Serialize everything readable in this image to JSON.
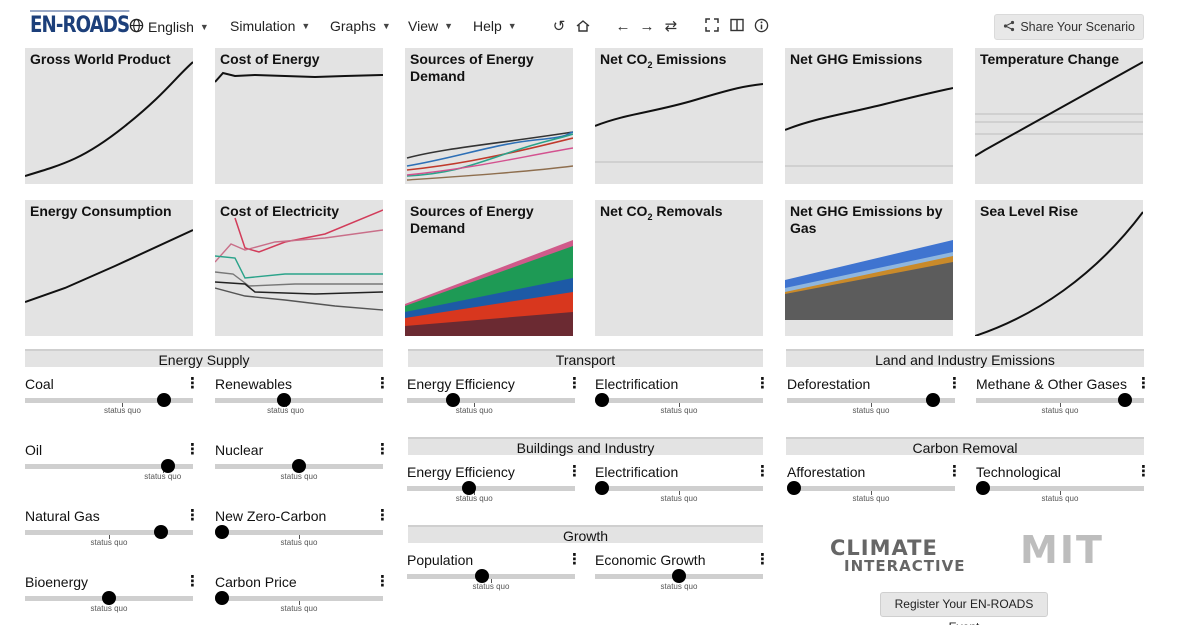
{
  "app": {
    "logo": "EN-ROADS",
    "menus": {
      "language": "English",
      "simulation": "Simulation",
      "graphs": "Graphs",
      "view": "View",
      "help": "Help"
    },
    "share_label": "Share Your Scenario",
    "register_label": "Register Your EN-ROADS Event"
  },
  "graphs": {
    "gwp": "Gross World Product",
    "cost_energy": "Cost of Energy",
    "sources_demand_1": "Sources of Energy Demand",
    "net_co2_prefix": "Net CO",
    "net_co2_sub": "2",
    "net_co2_suffix": " Emissions",
    "net_ghg": "Net GHG Emissions",
    "temperature": "Temperature Change",
    "energy_consumption": "Energy Consumption",
    "cost_electricity": "Cost of Electricity",
    "sources_demand_2": "Sources of Energy Demand",
    "removals_prefix": "Net CO",
    "removals_sub": "2",
    "removals_suffix": " Removals",
    "ghg_by_gas": "Net GHG Emissions by Gas",
    "sea_level": "Sea Level Rise"
  },
  "sections": {
    "energy_supply": "Energy Supply",
    "transport": "Transport",
    "land_industry": "Land and Industry Emissions",
    "buildings_industry": "Buildings and Industry",
    "carbon_removal": "Carbon Removal",
    "growth": "Growth"
  },
  "status_quo": "status quo",
  "sliders": {
    "coal": {
      "label": "Coal",
      "value": 0.86,
      "sq": 0.58
    },
    "renewables": {
      "label": "Renewables",
      "value": 0.4,
      "sq": 0.42
    },
    "oil": {
      "label": "Oil",
      "value": 0.88,
      "sq": 0.82
    },
    "nuclear": {
      "label": "Nuclear",
      "value": 0.5,
      "sq": 0.5
    },
    "natural_gas": {
      "label": "Natural Gas",
      "value": 0.84,
      "sq": 0.5
    },
    "new_zero_carbon": {
      "label": "New Zero-Carbon",
      "value": 0.0,
      "sq": 0.5
    },
    "bioenergy": {
      "label": "Bioenergy",
      "value": 0.5,
      "sq": 0.5
    },
    "carbon_price": {
      "label": "Carbon Price",
      "value": 0.0,
      "sq": 0.5
    },
    "transport_efficiency": {
      "label": "Energy Efficiency",
      "value": 0.25,
      "sq": 0.4
    },
    "transport_electrification": {
      "label": "Electrification",
      "value": 0.0,
      "sq": 0.5
    },
    "buildings_efficiency": {
      "label": "Energy Efficiency",
      "value": 0.36,
      "sq": 0.4
    },
    "buildings_electrification": {
      "label": "Electrification",
      "value": 0.0,
      "sq": 0.5
    },
    "population": {
      "label": "Population",
      "value": 0.44,
      "sq": 0.5
    },
    "economic_growth": {
      "label": "Economic Growth",
      "value": 0.5,
      "sq": 0.5
    },
    "deforestation": {
      "label": "Deforestation",
      "value": 0.9,
      "sq": 0.5
    },
    "methane": {
      "label": "Methane & Other Gases",
      "value": 0.92,
      "sq": 0.5
    },
    "afforestation": {
      "label": "Afforestation",
      "value": 0.0,
      "sq": 0.5
    },
    "technological": {
      "label": "Technological",
      "value": 0.0,
      "sq": 0.5
    }
  },
  "partners": {
    "climate_interactive_line1": "CLIMATE",
    "climate_interactive_line2": "INTERACTIVE",
    "mit": "MIT"
  },
  "colors": {
    "panel_bg": "#e3e3e3",
    "logo": "#1c3f7a",
    "knob": "#000000"
  }
}
